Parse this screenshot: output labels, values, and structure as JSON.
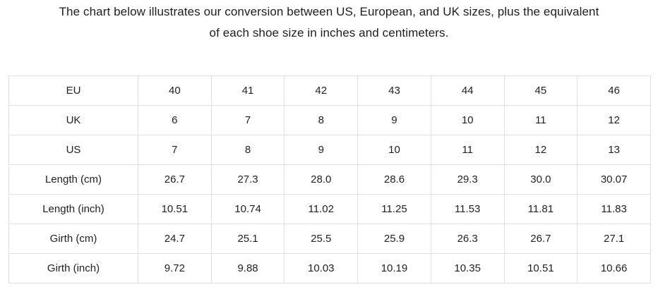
{
  "page": {
    "title_line1": "The chart below illustrates our conversion between US, European, and UK sizes, plus the equivalent",
    "title_line2": "of each shoe size in inches and centimeters."
  },
  "colors": {
    "background": "#ffffff",
    "text": "#222222",
    "title_text": "#1d1d1d",
    "table_border": "#e0e0e0"
  },
  "chart_data": {
    "type": "table",
    "title": "The chart below illustrates our conversion between US, European, and UK sizes, plus the equivalent of each shoe size in inches and centimeters.",
    "rows": [
      {
        "label": "EU",
        "values": [
          "40",
          "41",
          "42",
          "43",
          "44",
          "45",
          "46"
        ]
      },
      {
        "label": "UK",
        "values": [
          "6",
          "7",
          "8",
          "9",
          "10",
          "11",
          "12"
        ]
      },
      {
        "label": "US",
        "values": [
          "7",
          "8",
          "9",
          "10",
          "11",
          "12",
          "13"
        ]
      },
      {
        "label": "Length (cm)",
        "values": [
          "26.7",
          "27.3",
          "28.0",
          "28.6",
          "29.3",
          "30.0",
          "30.07"
        ]
      },
      {
        "label": "Length (inch)",
        "values": [
          "10.51",
          "10.74",
          "11.02",
          "11.25",
          "11.53",
          "11.81",
          "11.83"
        ]
      },
      {
        "label": "Girth (cm)",
        "values": [
          "24.7",
          "25.1",
          "25.5",
          "25.9",
          "26.3",
          "26.7",
          "27.1"
        ]
      },
      {
        "label": "Girth (inch)",
        "values": [
          "9.72",
          "9.88",
          "10.03",
          "10.19",
          "10.35",
          "10.51",
          "10.66"
        ]
      }
    ]
  }
}
